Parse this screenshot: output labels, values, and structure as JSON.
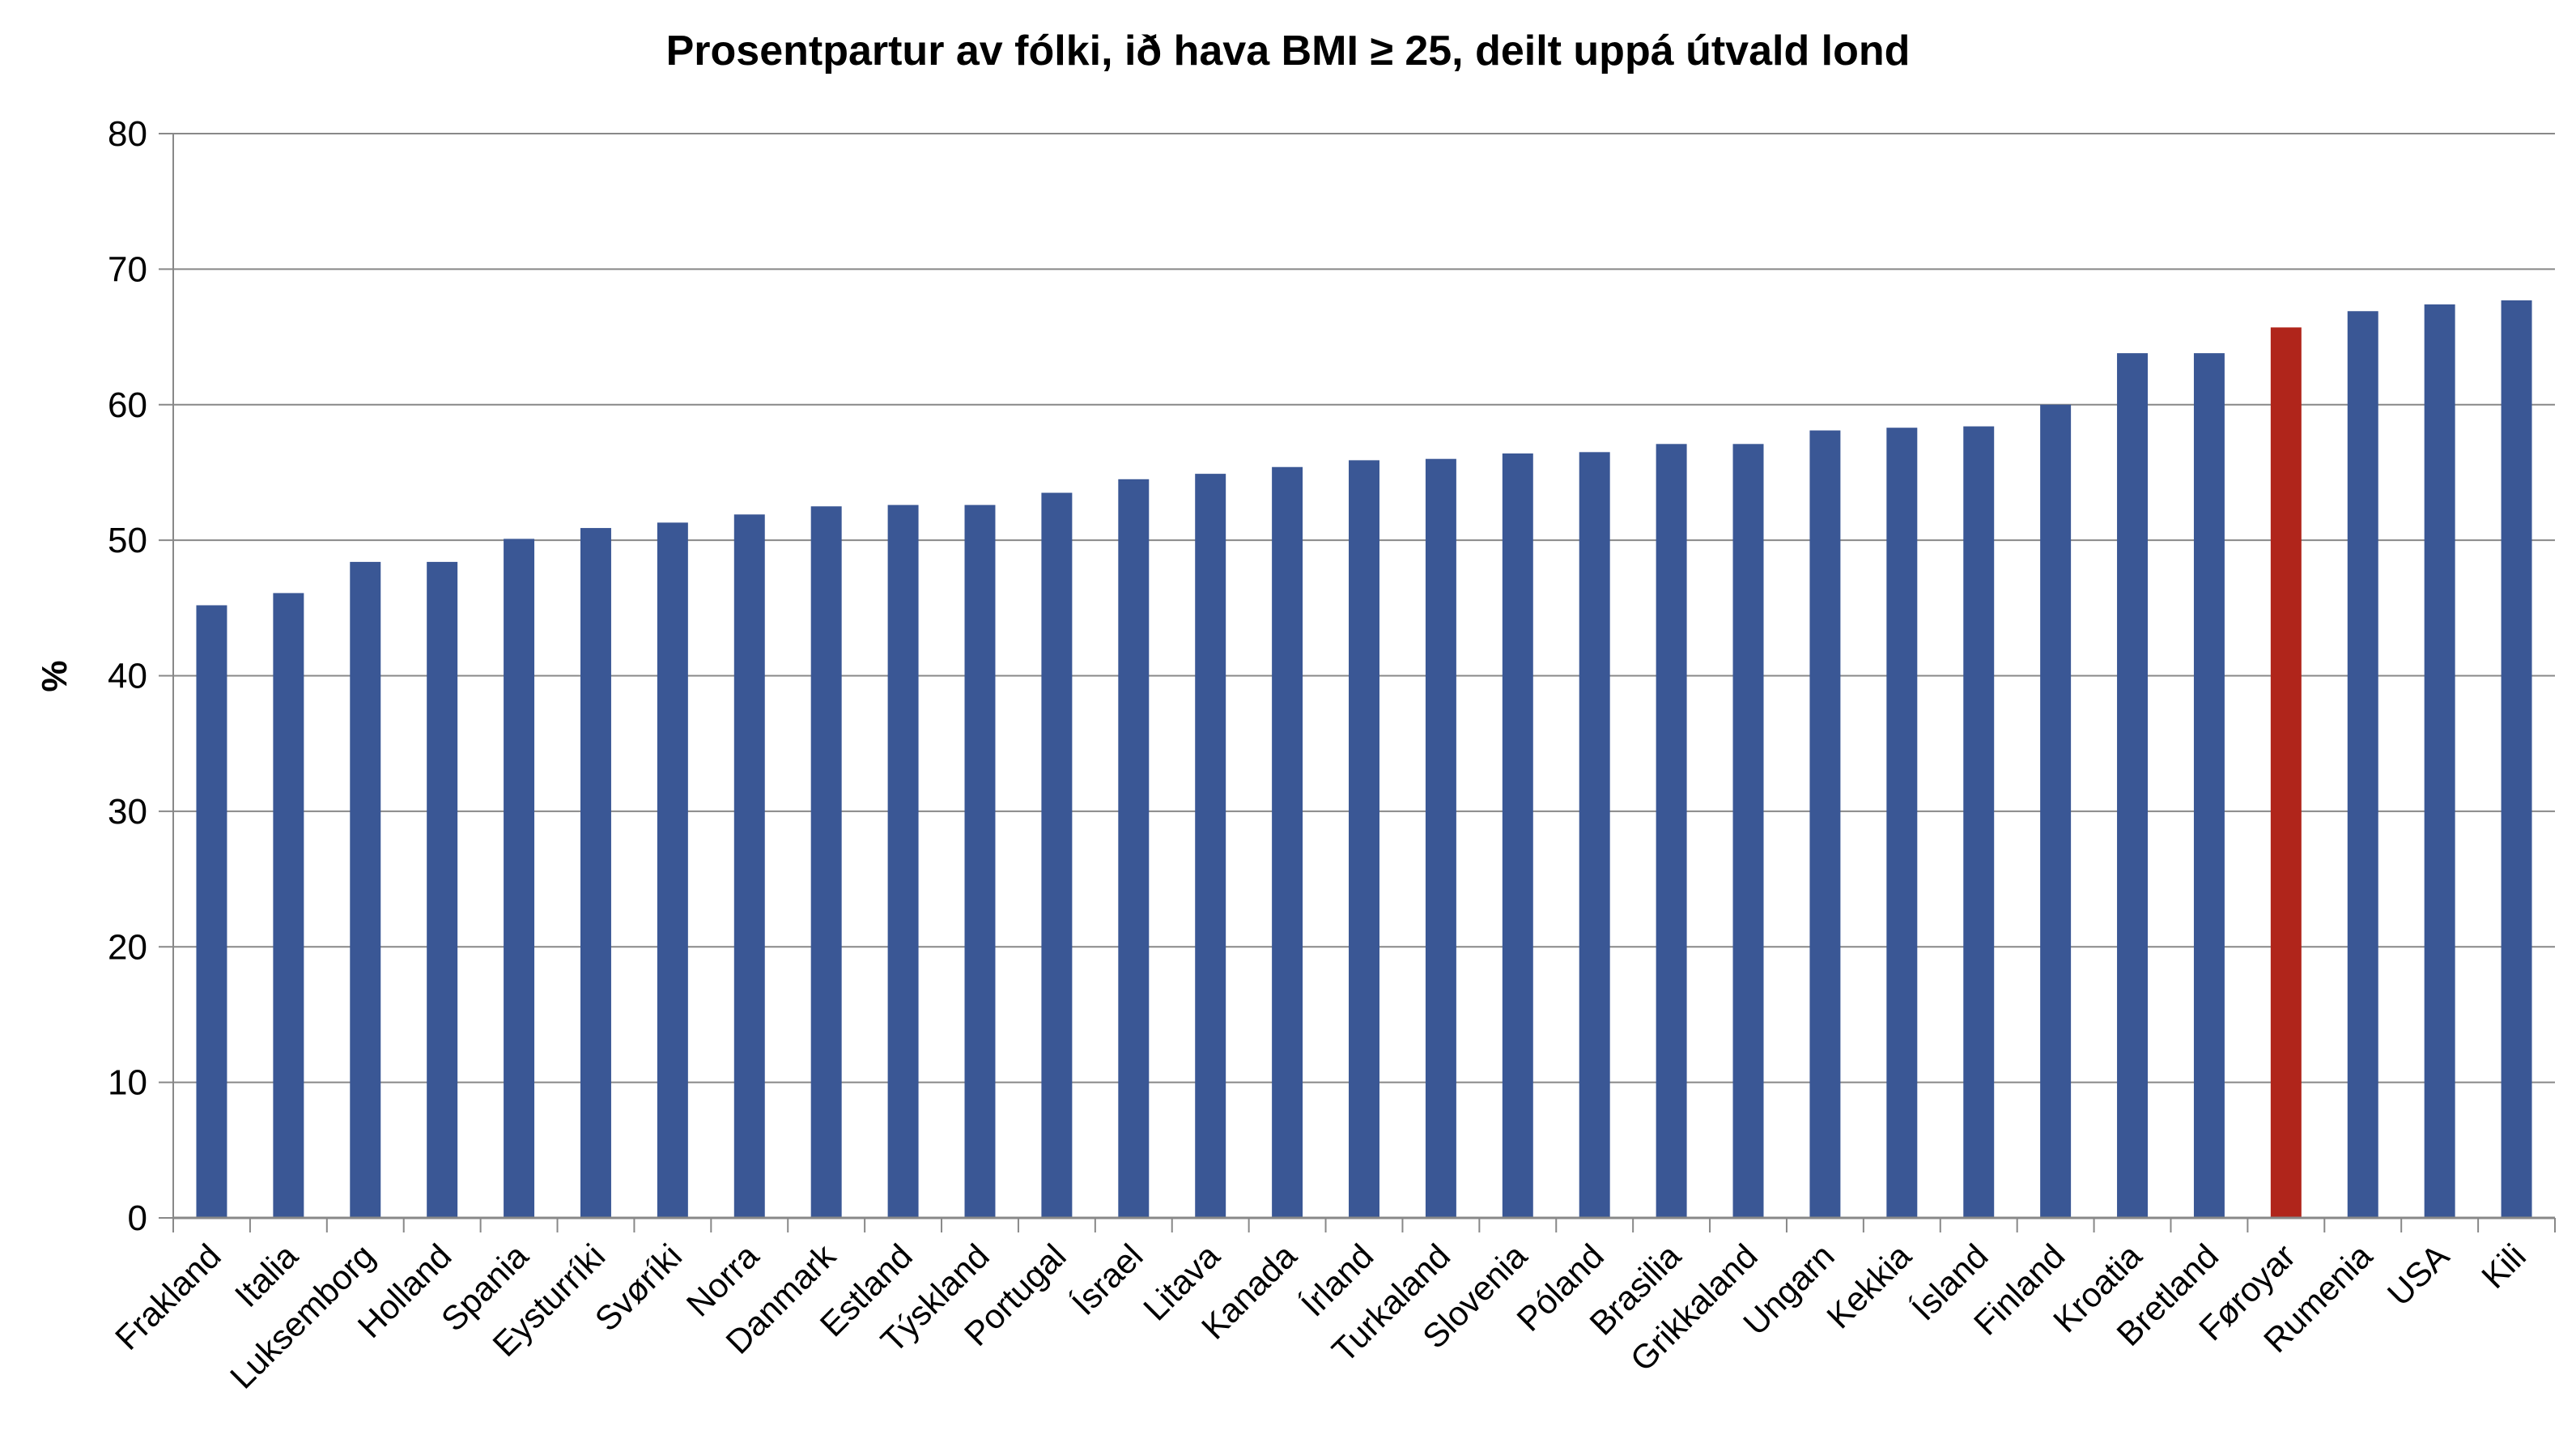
{
  "chart_data": {
    "type": "bar",
    "title": "Prosentpartur av fólki, ið hava BMI ≥ 25, deilt uppá útvald lond",
    "xlabel": "",
    "ylabel": "%",
    "ylim": [
      0,
      80
    ],
    "yticks": [
      0,
      10,
      20,
      30,
      40,
      50,
      60,
      70,
      80
    ],
    "grid": true,
    "categories": [
      "Frakland",
      "Italia",
      "Luksemborg",
      "Holland",
      "Spania",
      "Eysturríki",
      "Svøríki",
      "Norra",
      "Danmark",
      "Estland",
      "Týskland",
      "Portugal",
      "Ísrael",
      "Litava",
      "Kanada",
      "Írland",
      "Turkaland",
      "Slovenia",
      "Póland",
      "Brasilia",
      "Grikkaland",
      "Ungarn",
      "Kekkia",
      "Ísland",
      "Finland",
      "Kroatia",
      "Bretland",
      "Føroyar",
      "Rumenia",
      "USA",
      "Kili"
    ],
    "values": [
      45.2,
      46.1,
      48.4,
      48.4,
      50.1,
      50.9,
      51.3,
      51.9,
      52.5,
      52.6,
      52.6,
      53.5,
      54.5,
      54.9,
      55.4,
      55.9,
      56.0,
      56.4,
      56.5,
      57.1,
      57.1,
      58.1,
      58.3,
      58.4,
      60.0,
      63.8,
      63.8,
      65.7,
      66.9,
      67.4,
      67.7
    ],
    "highlight": "Føroyar",
    "colors": {
      "bar": "#3a5795",
      "highlight": "#b0251b",
      "grid": "#888888"
    }
  }
}
